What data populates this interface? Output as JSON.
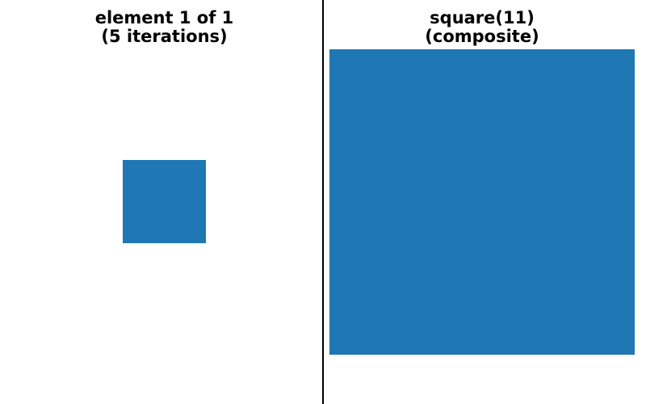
{
  "left_panel": {
    "title_line1": "element 1 of 1",
    "title_line2": "(5 iterations)",
    "fill_color": "#1f77b4"
  },
  "right_panel": {
    "title_line1": "square(11)",
    "title_line2": "(composite)",
    "fill_color": "#1f77b4"
  },
  "divider_color": "#000000"
}
